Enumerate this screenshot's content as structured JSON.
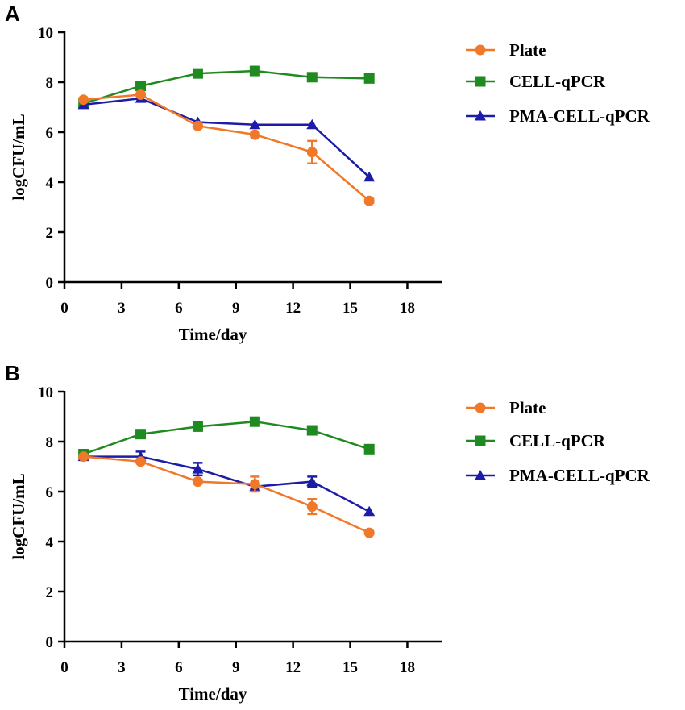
{
  "chart_data": [
    {
      "type": "line",
      "panel_label": "A",
      "xlabel": "Time/day",
      "ylabel": "logCFU/mL",
      "xlim": [
        0,
        19.8
      ],
      "ylim": [
        0,
        10
      ],
      "xticks": [
        0,
        3,
        6,
        9,
        12,
        15,
        18
      ],
      "yticks": [
        0,
        2,
        4,
        6,
        8,
        10
      ],
      "x": [
        1,
        4,
        7,
        10,
        13,
        16
      ],
      "legend_position": "right",
      "series": [
        {
          "name": "Plate",
          "color": "#F07828",
          "marker": "circle",
          "values": [
            7.3,
            7.5,
            6.25,
            5.9,
            5.2,
            3.25
          ],
          "errors": [
            0.06,
            0.06,
            0.08,
            0.08,
            0.45,
            0.08
          ]
        },
        {
          "name": "CELL-qPCR",
          "color": "#1F8A1F",
          "marker": "square",
          "values": [
            7.15,
            7.85,
            8.35,
            8.45,
            8.2,
            8.15
          ],
          "errors": [
            0,
            0,
            0,
            0,
            0,
            0
          ]
        },
        {
          "name": "PMA-CELL-qPCR",
          "color": "#1C1CA8",
          "marker": "triangle",
          "values": [
            7.1,
            7.35,
            6.4,
            6.3,
            6.3,
            4.2
          ],
          "errors": [
            0,
            0,
            0,
            0,
            0,
            0
          ]
        }
      ]
    },
    {
      "type": "line",
      "panel_label": "B",
      "xlabel": "Time/day",
      "ylabel": "logCFU/mL",
      "xlim": [
        0,
        19.8
      ],
      "ylim": [
        0,
        10
      ],
      "xticks": [
        0,
        3,
        6,
        9,
        12,
        15,
        18
      ],
      "yticks": [
        0,
        2,
        4,
        6,
        8,
        10
      ],
      "x": [
        1,
        4,
        7,
        10,
        13,
        16
      ],
      "legend_position": "right",
      "series": [
        {
          "name": "Plate",
          "color": "#F07828",
          "marker": "circle",
          "values": [
            7.4,
            7.2,
            6.4,
            6.3,
            5.4,
            4.35
          ],
          "errors": [
            0.05,
            0.06,
            0.08,
            0.3,
            0.3,
            0.05
          ]
        },
        {
          "name": "CELL-qPCR",
          "color": "#1F8A1F",
          "marker": "square",
          "values": [
            7.5,
            8.3,
            8.6,
            8.8,
            8.45,
            7.7
          ],
          "errors": [
            0,
            0,
            0,
            0,
            0,
            0
          ]
        },
        {
          "name": "PMA-CELL-qPCR",
          "color": "#1C1CA8",
          "marker": "triangle",
          "values": [
            7.4,
            7.4,
            6.9,
            6.2,
            6.4,
            5.2
          ],
          "errors": [
            0,
            0.2,
            0.25,
            0.1,
            0.2,
            0
          ]
        }
      ]
    }
  ]
}
